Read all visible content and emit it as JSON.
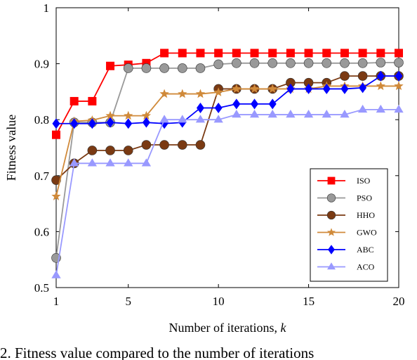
{
  "chart_data": {
    "type": "line",
    "xlabel": "Number of iterations, ",
    "xlabel_var": "k",
    "ylabel": "Fitness value",
    "xlim": [
      1,
      20
    ],
    "ylim": [
      0.5,
      1.0
    ],
    "x_ticks": [
      1,
      5,
      10,
      15,
      20
    ],
    "y_ticks": [
      0.5,
      0.6,
      0.7,
      0.8,
      0.9,
      1
    ],
    "y_tick_labels": [
      "0.5",
      "0.6",
      "0.7",
      "0.8",
      "0.9",
      "1"
    ],
    "grid": false,
    "legend_position": "right",
    "x": [
      1,
      2,
      3,
      4,
      5,
      6,
      7,
      8,
      9,
      10,
      11,
      12,
      13,
      14,
      15,
      16,
      17,
      18,
      19,
      20
    ],
    "series": [
      {
        "name": "ISO",
        "color": "#ff0000",
        "marker": "square",
        "values": [
          0.773,
          0.833,
          0.833,
          0.896,
          0.898,
          0.901,
          0.919,
          0.919,
          0.919,
          0.919,
          0.919,
          0.919,
          0.919,
          0.919,
          0.919,
          0.919,
          0.919,
          0.919,
          0.919,
          0.919
        ]
      },
      {
        "name": "PSO",
        "color": "#999999",
        "marker": "circle",
        "values": [
          0.553,
          0.795,
          0.795,
          0.795,
          0.892,
          0.892,
          0.892,
          0.892,
          0.892,
          0.899,
          0.901,
          0.901,
          0.901,
          0.901,
          0.901,
          0.901,
          0.901,
          0.901,
          0.902,
          0.902
        ]
      },
      {
        "name": "HHO",
        "color": "#7a3a13",
        "marker": "circle",
        "values": [
          0.692,
          0.722,
          0.745,
          0.745,
          0.745,
          0.755,
          0.755,
          0.755,
          0.755,
          0.855,
          0.855,
          0.855,
          0.855,
          0.866,
          0.866,
          0.866,
          0.878,
          0.878,
          0.878,
          0.878
        ]
      },
      {
        "name": "GWO",
        "color": "#d08a3a",
        "marker": "star",
        "values": [
          0.663,
          0.797,
          0.799,
          0.807,
          0.807,
          0.807,
          0.846,
          0.846,
          0.846,
          0.849,
          0.855,
          0.855,
          0.855,
          0.855,
          0.855,
          0.86,
          0.86,
          0.86,
          0.86,
          0.86
        ]
      },
      {
        "name": "ABC",
        "color": "#0000ff",
        "marker": "diamond",
        "values": [
          0.793,
          0.793,
          0.793,
          0.795,
          0.793,
          0.795,
          0.793,
          0.795,
          0.821,
          0.821,
          0.828,
          0.828,
          0.828,
          0.855,
          0.855,
          0.855,
          0.855,
          0.857,
          0.878,
          0.878
        ]
      },
      {
        "name": "ACO",
        "color": "#9999ff",
        "marker": "triangle",
        "values": [
          0.522,
          0.722,
          0.722,
          0.722,
          0.722,
          0.722,
          0.8,
          0.8,
          0.8,
          0.8,
          0.809,
          0.809,
          0.809,
          0.809,
          0.809,
          0.809,
          0.809,
          0.818,
          0.818,
          0.818
        ]
      }
    ]
  },
  "caption": "2. Fitness value compared to the number of iterations"
}
